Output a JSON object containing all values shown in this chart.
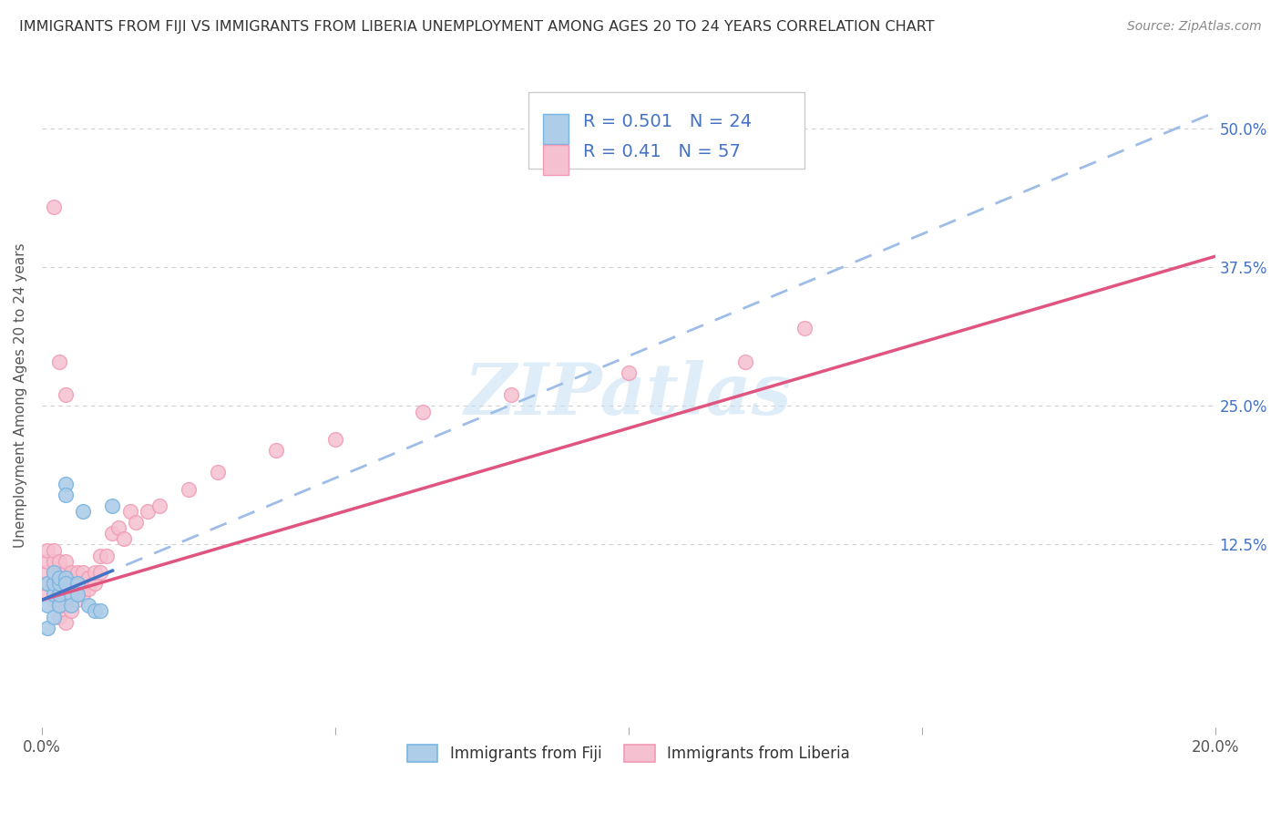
{
  "title": "IMMIGRANTS FROM FIJI VS IMMIGRANTS FROM LIBERIA UNEMPLOYMENT AMONG AGES 20 TO 24 YEARS CORRELATION CHART",
  "source": "Source: ZipAtlas.com",
  "ylabel": "Unemployment Among Ages 20 to 24 years",
  "xlim": [
    0.0,
    0.2
  ],
  "ylim": [
    -0.04,
    0.56
  ],
  "fiji_color": "#7ab4e0",
  "fiji_color_fill": "#aecde8",
  "liberia_color": "#f09ab5",
  "liberia_color_fill": "#f5c0d0",
  "fiji_R": 0.501,
  "fiji_N": 24,
  "liberia_R": 0.41,
  "liberia_N": 57,
  "fiji_line_color": "#4472c4",
  "fiji_dash_color": "#9dbde8",
  "liberia_line_color": "#e05580",
  "watermark_color": "#c5dff5",
  "grid_color": "#d0d0d0",
  "legend_text_color": "#4472c4",
  "fiji_line_intercept": 0.075,
  "fiji_line_slope": 2.2,
  "liberia_line_intercept": 0.075,
  "liberia_line_slope": 1.55,
  "fiji_x": [
    0.001,
    0.001,
    0.001,
    0.002,
    0.002,
    0.002,
    0.002,
    0.003,
    0.003,
    0.003,
    0.003,
    0.004,
    0.004,
    0.004,
    0.004,
    0.005,
    0.005,
    0.006,
    0.006,
    0.007,
    0.008,
    0.009,
    0.01,
    0.012
  ],
  "fiji_y": [
    0.05,
    0.07,
    0.09,
    0.06,
    0.08,
    0.09,
    0.1,
    0.07,
    0.08,
    0.09,
    0.095,
    0.18,
    0.17,
    0.095,
    0.09,
    0.08,
    0.07,
    0.09,
    0.08,
    0.155,
    0.07,
    0.065,
    0.065,
    0.16
  ],
  "liberia_x": [
    0.001,
    0.001,
    0.001,
    0.001,
    0.001,
    0.002,
    0.002,
    0.002,
    0.002,
    0.002,
    0.003,
    0.003,
    0.003,
    0.003,
    0.003,
    0.003,
    0.004,
    0.004,
    0.004,
    0.004,
    0.004,
    0.005,
    0.005,
    0.005,
    0.005,
    0.006,
    0.006,
    0.006,
    0.007,
    0.007,
    0.007,
    0.008,
    0.008,
    0.009,
    0.009,
    0.01,
    0.01,
    0.011,
    0.012,
    0.013,
    0.014,
    0.015,
    0.016,
    0.018,
    0.02,
    0.025,
    0.03,
    0.04,
    0.05,
    0.065,
    0.08,
    0.1,
    0.12,
    0.13,
    0.002,
    0.003,
    0.004
  ],
  "liberia_y": [
    0.08,
    0.09,
    0.1,
    0.11,
    0.12,
    0.075,
    0.09,
    0.1,
    0.11,
    0.12,
    0.06,
    0.07,
    0.08,
    0.09,
    0.1,
    0.11,
    0.055,
    0.07,
    0.09,
    0.1,
    0.11,
    0.065,
    0.08,
    0.09,
    0.1,
    0.075,
    0.09,
    0.1,
    0.08,
    0.09,
    0.1,
    0.085,
    0.095,
    0.09,
    0.1,
    0.1,
    0.115,
    0.115,
    0.135,
    0.14,
    0.13,
    0.155,
    0.145,
    0.155,
    0.16,
    0.175,
    0.19,
    0.21,
    0.22,
    0.245,
    0.26,
    0.28,
    0.29,
    0.32,
    0.43,
    0.29,
    0.26
  ]
}
